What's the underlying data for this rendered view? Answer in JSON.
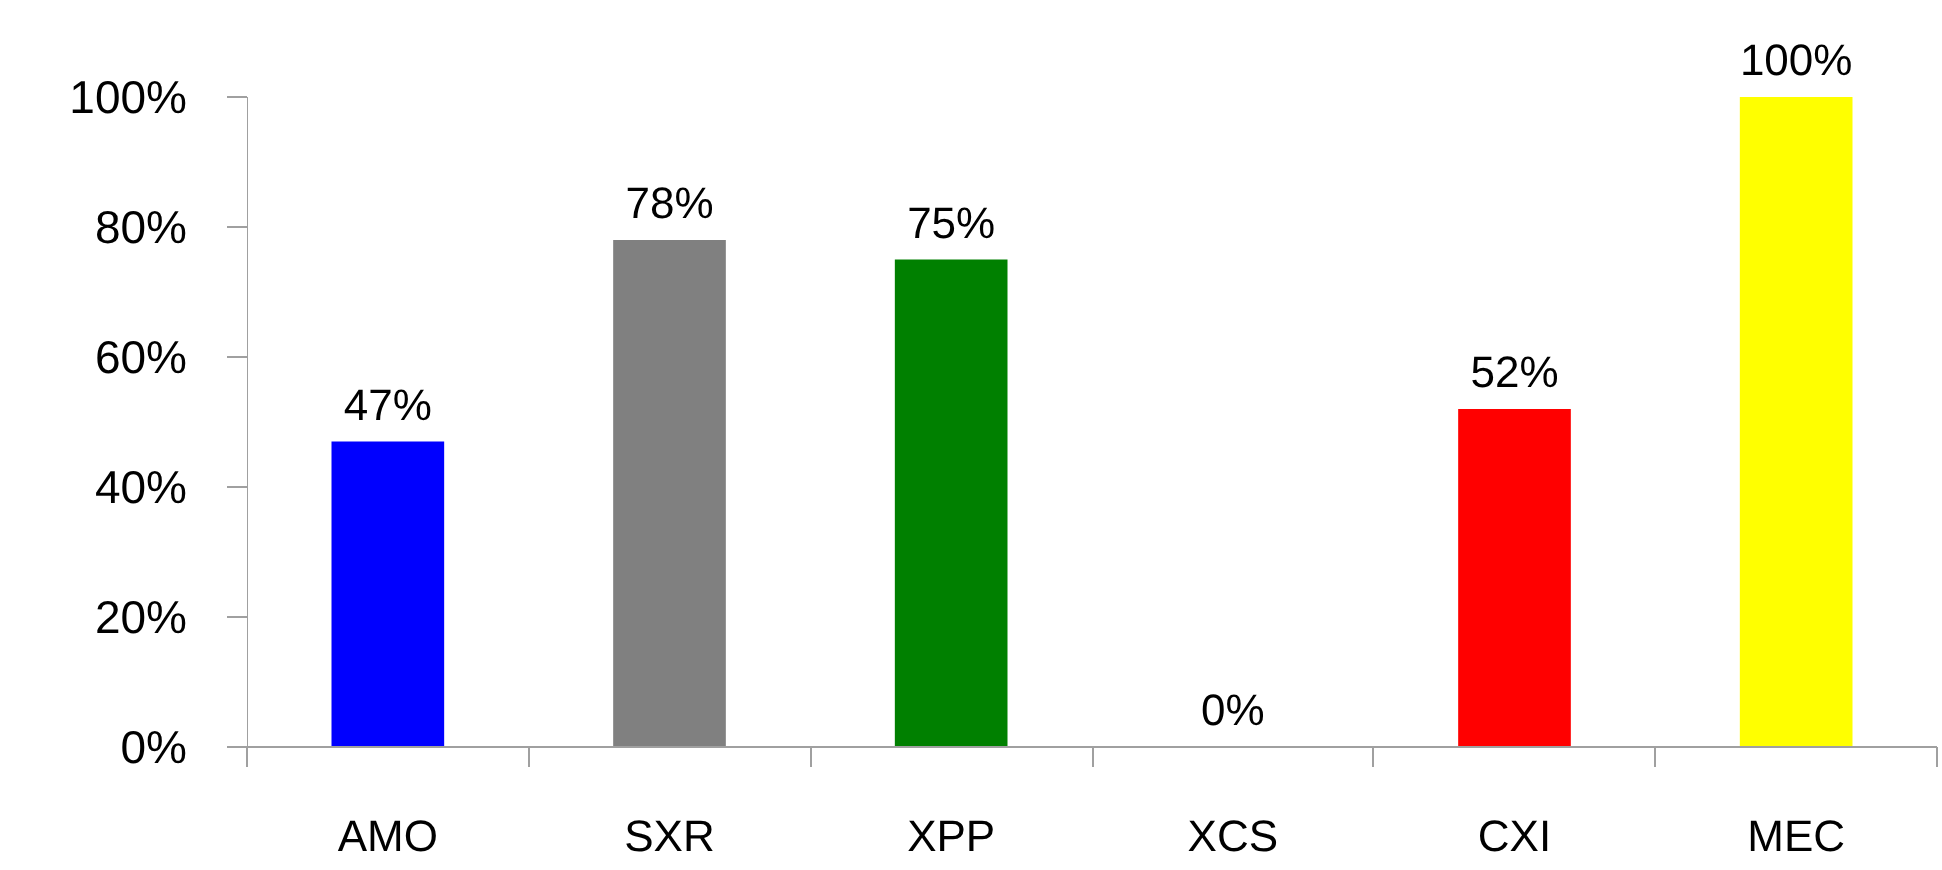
{
  "chart_data": {
    "type": "bar",
    "categories": [
      "AMO",
      "SXR",
      "XPP",
      "XCS",
      "CXI",
      "MEC"
    ],
    "values": [
      47,
      78,
      75,
      0,
      52,
      100
    ],
    "colors": [
      "#0000ff",
      "#808080",
      "#008000",
      null,
      "#ff0000",
      "#ffff00"
    ],
    "value_labels": [
      "47%",
      "78%",
      "75%",
      "0%",
      "52%",
      "100%"
    ],
    "ylim": [
      0,
      100
    ],
    "yticks": [
      {
        "value": 0,
        "label": "0%"
      },
      {
        "value": 20,
        "label": "20%"
      },
      {
        "value": 40,
        "label": "40%"
      },
      {
        "value": 60,
        "label": "60%"
      },
      {
        "value": 80,
        "label": "80%"
      },
      {
        "value": 100,
        "label": "100%"
      }
    ],
    "grid": false
  }
}
